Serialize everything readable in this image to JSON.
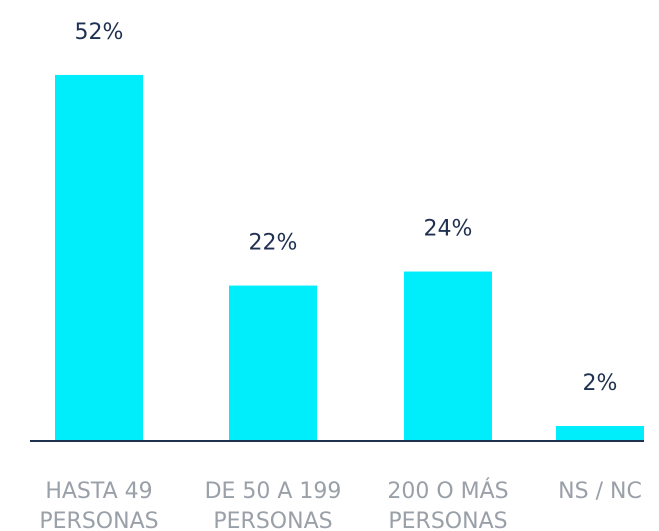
{
  "chart_data": {
    "type": "bar",
    "categories": [
      "HASTA 49\nPERSONAS",
      "DE 50 A 199\nPERSONAS",
      "200 O MÁS\nPERSONAS",
      "NS / NC"
    ],
    "values": [
      52,
      22,
      24,
      2
    ],
    "value_labels": [
      "52%",
      "22%",
      "24%",
      "2%"
    ],
    "color": "#00eefc"
  }
}
